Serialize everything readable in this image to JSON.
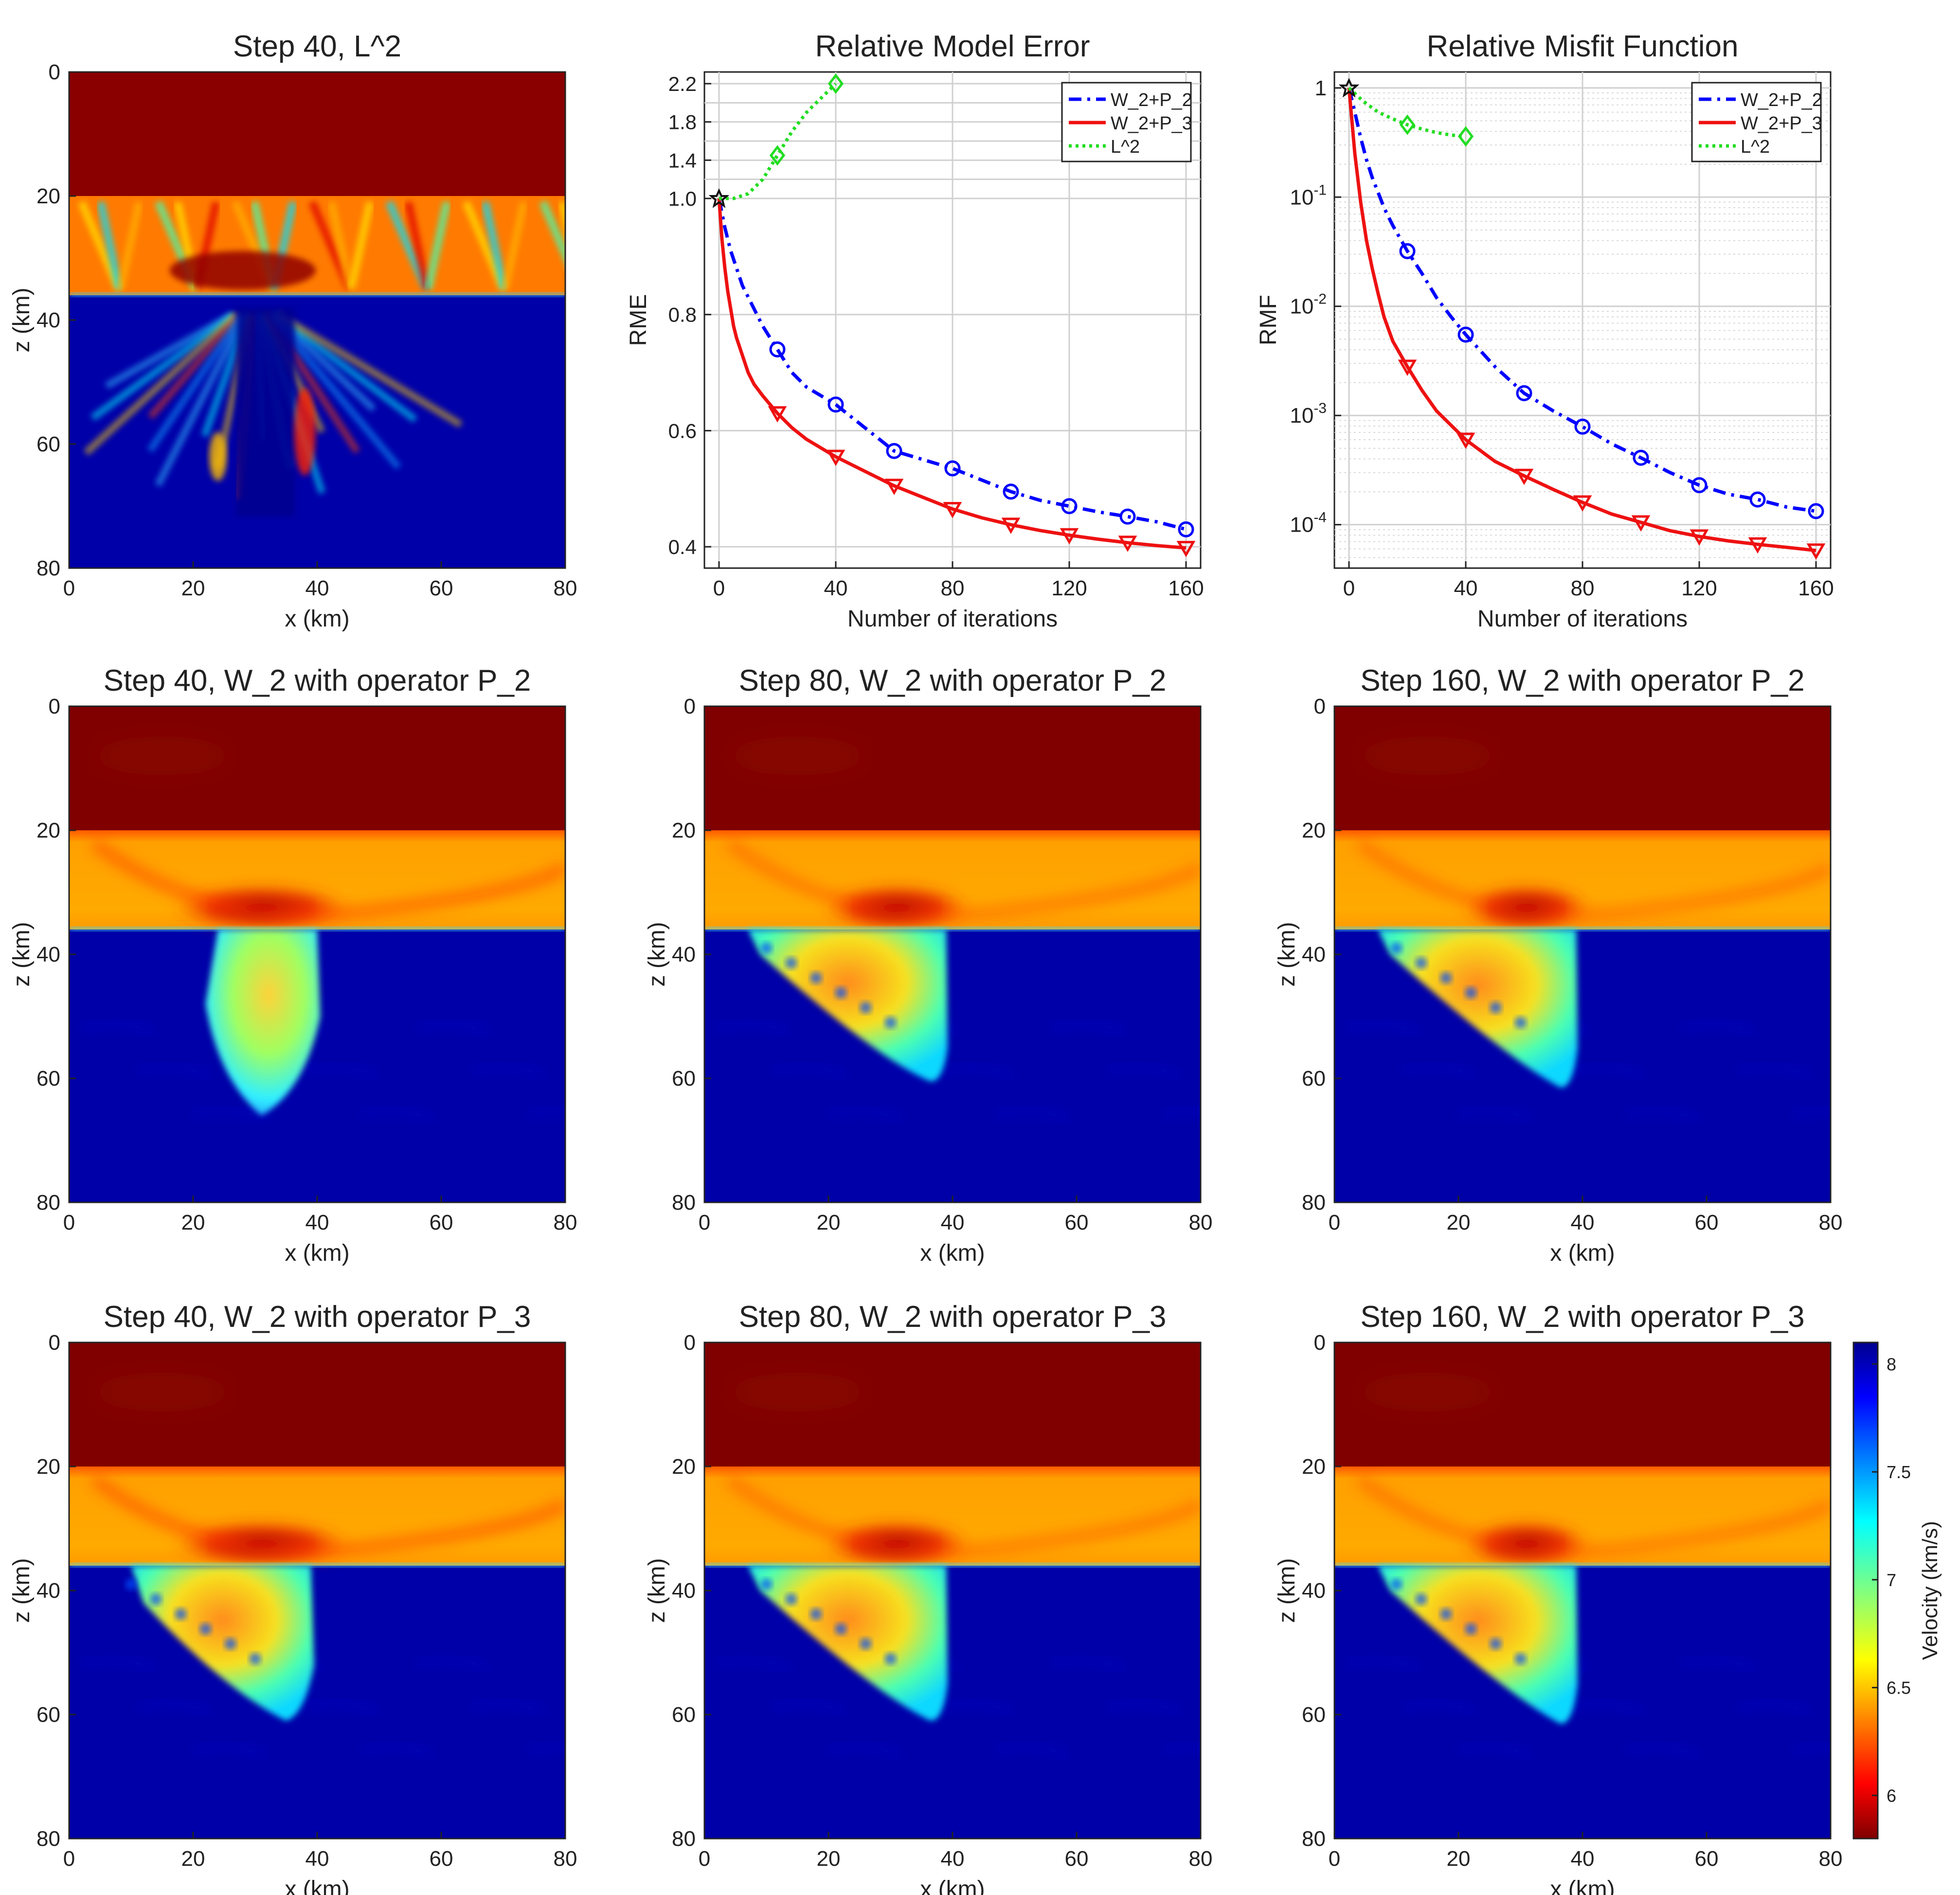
{
  "chart_data": [
    {
      "id": "map_l2_40",
      "type": "heatmap",
      "title": "Step 40, L^2",
      "xlabel": "x (km)",
      "ylabel": "z (km)",
      "xlim": [
        0,
        80
      ],
      "ylim": [
        0,
        80
      ],
      "xticks": [
        "0",
        "20",
        "40",
        "60",
        "80"
      ],
      "yticks": [
        "0",
        "20",
        "40",
        "60",
        "80"
      ]
    },
    {
      "id": "rme",
      "type": "line",
      "title": "Relative Model Error",
      "xlabel": "Number of iterations",
      "ylabel": "RME",
      "xlim": [
        0,
        160
      ],
      "ylim": [
        0.38,
        2.3
      ],
      "scale": "stretched: linear 0.38–1.0 on lower 77%, linear 1.0–2.2 above",
      "xticks": [
        "0",
        "40",
        "80",
        "120",
        "160"
      ],
      "yticks": [
        "0.4",
        "0.6",
        "0.8",
        "1.0",
        "1.4",
        "1.8",
        "2.2"
      ],
      "legend_position": "top-right",
      "series": [
        {
          "name": "W_2+P_2",
          "color": "#0000ff",
          "style": "dash-dot",
          "marker": "circle",
          "x": [
            0,
            2,
            4,
            6,
            8,
            10,
            12,
            15,
            20,
            25,
            30,
            35,
            40,
            45,
            50,
            60,
            70,
            80,
            90,
            100,
            110,
            120,
            130,
            140,
            150,
            160
          ],
          "y": [
            1.0,
            0.95,
            0.91,
            0.88,
            0.85,
            0.83,
            0.81,
            0.78,
            0.74,
            0.7,
            0.675,
            0.66,
            0.645,
            0.625,
            0.605,
            0.565,
            0.55,
            0.535,
            0.515,
            0.495,
            0.48,
            0.47,
            0.46,
            0.452,
            0.443,
            0.43
          ],
          "marker_x": [
            20,
            40,
            60,
            80,
            100,
            120,
            140,
            160
          ]
        },
        {
          "name": "W_2+P_3",
          "color": "#ee1111",
          "style": "solid",
          "marker": "triangle-down",
          "x": [
            0,
            1,
            2,
            3,
            4,
            5,
            6,
            8,
            10,
            12,
            15,
            20,
            25,
            30,
            40,
            50,
            60,
            70,
            80,
            90,
            100,
            110,
            120,
            130,
            140,
            150,
            160
          ],
          "y": [
            1.0,
            0.93,
            0.88,
            0.84,
            0.81,
            0.78,
            0.76,
            0.73,
            0.7,
            0.68,
            0.66,
            0.63,
            0.605,
            0.585,
            0.555,
            0.53,
            0.505,
            0.485,
            0.465,
            0.45,
            0.438,
            0.428,
            0.42,
            0.413,
            0.407,
            0.402,
            0.398
          ],
          "marker_x": [
            20,
            40,
            60,
            80,
            100,
            120,
            140,
            160
          ]
        },
        {
          "name": "L^2",
          "color": "#22dd22",
          "style": "dotted",
          "marker": "diamond",
          "x": [
            0,
            5,
            10,
            15,
            20,
            25,
            30,
            35,
            40
          ],
          "y": [
            1.0,
            1.0,
            1.05,
            1.2,
            1.45,
            1.7,
            1.9,
            2.05,
            2.2
          ],
          "marker_x": [
            20,
            40
          ]
        }
      ]
    },
    {
      "id": "rmf",
      "type": "line",
      "title": "Relative Misfit Function",
      "xlabel": "Number of iterations",
      "ylabel": "RMF",
      "xlim": [
        0,
        160
      ],
      "ylim": [
        4e-05,
        1.4
      ],
      "scale": "log-y",
      "xticks": [
        "0",
        "40",
        "80",
        "120",
        "160"
      ],
      "yticks": [
        {
          "base": "1",
          "exp": ""
        },
        {
          "base": "10",
          "exp": "-1"
        },
        {
          "base": "10",
          "exp": "-2"
        },
        {
          "base": "10",
          "exp": "-3"
        },
        {
          "base": "10",
          "exp": "-4"
        }
      ],
      "legend_position": "top-right",
      "series": [
        {
          "name": "W_2+P_2",
          "color": "#0000ff",
          "style": "dash-dot",
          "marker": "circle",
          "x": [
            0,
            2,
            4,
            6,
            8,
            10,
            12,
            15,
            20,
            25,
            30,
            35,
            40,
            50,
            60,
            70,
            80,
            90,
            100,
            110,
            120,
            130,
            140,
            150,
            160
          ],
          "y": [
            1.0,
            0.6,
            0.35,
            0.22,
            0.15,
            0.11,
            0.08,
            0.055,
            0.032,
            0.02,
            0.012,
            0.008,
            0.0055,
            0.0028,
            0.0016,
            0.0011,
            0.00079,
            0.00055,
            0.00041,
            0.0003,
            0.00023,
            0.00019,
            0.00017,
            0.000145,
            0.000133
          ],
          "marker_x": [
            20,
            40,
            60,
            80,
            100,
            120,
            140,
            160
          ]
        },
        {
          "name": "W_2+P_3",
          "color": "#ee1111",
          "style": "solid",
          "marker": "triangle-down",
          "x": [
            0,
            1,
            2,
            3,
            4,
            5,
            6,
            8,
            10,
            12,
            15,
            20,
            25,
            30,
            40,
            50,
            60,
            70,
            80,
            90,
            100,
            110,
            120,
            130,
            140,
            150,
            160
          ],
          "y": [
            1.0,
            0.5,
            0.25,
            0.15,
            0.09,
            0.06,
            0.04,
            0.022,
            0.013,
            0.008,
            0.0048,
            0.0028,
            0.0017,
            0.0011,
            0.0006,
            0.00038,
            0.00028,
            0.00021,
            0.00016,
            0.000125,
            0.000105,
            8.8e-05,
            7.8e-05,
            7.1e-05,
            6.6e-05,
            6.2e-05,
            5.8e-05
          ],
          "marker_x": [
            20,
            40,
            60,
            80,
            100,
            120,
            140,
            160
          ]
        },
        {
          "name": "L^2",
          "color": "#22dd22",
          "style": "dotted",
          "marker": "diamond",
          "x": [
            0,
            5,
            10,
            15,
            20,
            25,
            30,
            35,
            40
          ],
          "y": [
            1.0,
            0.75,
            0.6,
            0.52,
            0.46,
            0.42,
            0.39,
            0.37,
            0.36
          ],
          "marker_x": [
            20,
            40
          ]
        }
      ]
    },
    {
      "id": "map_p2_40",
      "type": "heatmap",
      "title": "Step 40, W_2 with operator P_2",
      "xlabel": "x (km)",
      "ylabel": "z (km)",
      "xlim": [
        0,
        80
      ],
      "ylim": [
        0,
        80
      ],
      "xticks": [
        "0",
        "20",
        "40",
        "60",
        "80"
      ],
      "yticks": [
        "0",
        "20",
        "40",
        "60",
        "80"
      ]
    },
    {
      "id": "map_p2_80",
      "type": "heatmap",
      "title": "Step 80, W_2 with operator P_2",
      "xlabel": "x (km)",
      "ylabel": "z (km)",
      "xlim": [
        0,
        80
      ],
      "ylim": [
        0,
        80
      ],
      "xticks": [
        "0",
        "20",
        "40",
        "60",
        "80"
      ],
      "yticks": [
        "0",
        "20",
        "40",
        "60",
        "80"
      ]
    },
    {
      "id": "map_p2_160",
      "type": "heatmap",
      "title": "Step 160, W_2 with operator P_2",
      "xlabel": "x (km)",
      "ylabel": "z (km)",
      "xlim": [
        0,
        80
      ],
      "ylim": [
        0,
        80
      ],
      "xticks": [
        "0",
        "20",
        "40",
        "60",
        "80"
      ],
      "yticks": [
        "0",
        "20",
        "40",
        "60",
        "80"
      ]
    },
    {
      "id": "map_p3_40",
      "type": "heatmap",
      "title": "Step 40, W_2 with operator P_3",
      "xlabel": "x (km)",
      "ylabel": "z (km)",
      "xlim": [
        0,
        80
      ],
      "ylim": [
        0,
        80
      ],
      "xticks": [
        "0",
        "20",
        "40",
        "60",
        "80"
      ],
      "yticks": [
        "0",
        "20",
        "40",
        "60",
        "80"
      ]
    },
    {
      "id": "map_p3_80",
      "type": "heatmap",
      "title": "Step 80, W_2 with operator P_3",
      "xlabel": "x (km)",
      "ylabel": "z (km)",
      "xlim": [
        0,
        80
      ],
      "ylim": [
        0,
        80
      ],
      "xticks": [
        "0",
        "20",
        "40",
        "60",
        "80"
      ],
      "yticks": [
        "0",
        "20",
        "40",
        "60",
        "80"
      ]
    },
    {
      "id": "map_p3_160",
      "type": "heatmap",
      "title": "Step 160, W_2 with operator P_3",
      "xlabel": "x (km)",
      "ylabel": "z (km)",
      "xlim": [
        0,
        80
      ],
      "ylim": [
        0,
        80
      ],
      "xticks": [
        "0",
        "20",
        "40",
        "60",
        "80"
      ],
      "yticks": [
        "0",
        "20",
        "40",
        "60",
        "80"
      ]
    }
  ],
  "colorbar": {
    "label": "Velocity (km/s)",
    "range": [
      5.8,
      8.1
    ],
    "ticks": [
      "6",
      "6.5",
      "7",
      "7.5",
      "8"
    ],
    "tick_values": [
      6,
      6.5,
      7,
      7.5,
      8
    ],
    "colormap": "jet (dark red = low, dark blue = high)"
  },
  "colors": {
    "dark_red": "#800000",
    "orange": "#ffa500",
    "cyan": "#00ffff",
    "dark_blue": "#00008f"
  }
}
